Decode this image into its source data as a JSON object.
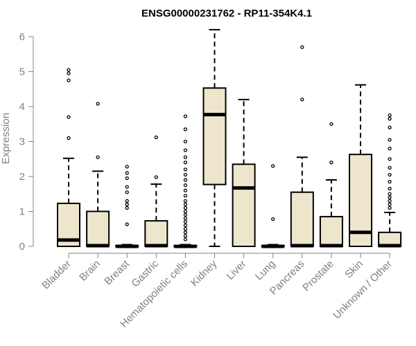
{
  "chart_data": {
    "type": "box",
    "title": "ENSG00000231762 - RP11-354K4.1",
    "ylabel": "Expression",
    "xlabel": "",
    "ylim": [
      0,
      6.2
    ],
    "yticks": [
      0,
      1,
      2,
      3,
      4,
      5,
      6
    ],
    "box_fill": "#ede6cc",
    "grid": false,
    "categories": [
      "Bladder",
      "Brain",
      "Breast",
      "Gastric",
      "Hematopoietic cells",
      "Kidney",
      "Liver",
      "Lung",
      "Pancreas",
      "Prostate",
      "Skin",
      "Unknown / Other"
    ],
    "boxes": [
      {
        "min": 0,
        "q1": 0,
        "median": 0.18,
        "q3": 1.23,
        "max": 2.52,
        "outliers": [
          3.1,
          3.7,
          4.75,
          4.95,
          5.05
        ]
      },
      {
        "min": 0,
        "q1": 0,
        "median": 0.02,
        "q3": 1.0,
        "max": 2.15,
        "outliers": [
          2.55,
          4.08
        ]
      },
      {
        "min": 0,
        "q1": 0,
        "median": 0.0,
        "q3": 0.02,
        "max": 0.05,
        "outliers": [
          0.63,
          1.1,
          1.2,
          1.3,
          1.55,
          1.7,
          1.95,
          2.1,
          2.28
        ]
      },
      {
        "min": 0,
        "q1": 0,
        "median": 0.02,
        "q3": 0.73,
        "max": 1.78,
        "outliers": [
          1.98,
          3.12
        ]
      },
      {
        "min": 0,
        "q1": 0,
        "median": 0.0,
        "q3": 0.02,
        "max": 0.05,
        "outliers": [
          0.2,
          0.3,
          0.4,
          0.5,
          0.6,
          0.7,
          0.8,
          0.9,
          1.0,
          1.1,
          1.2,
          1.3,
          1.45,
          1.6,
          1.75,
          1.9,
          2.05,
          2.2,
          2.4,
          2.55,
          2.75,
          3.0,
          3.35,
          3.72
        ]
      },
      {
        "min": 0,
        "q1": 1.77,
        "median": 3.77,
        "q3": 4.53,
        "max": 6.2,
        "outliers": []
      },
      {
        "min": 0,
        "q1": 0,
        "median": 1.67,
        "q3": 2.35,
        "max": 4.2,
        "outliers": []
      },
      {
        "min": 0,
        "q1": 0,
        "median": 0.0,
        "q3": 0.02,
        "max": 0.05,
        "outliers": [
          0.78,
          2.3
        ]
      },
      {
        "min": 0,
        "q1": 0,
        "median": 0.02,
        "q3": 1.55,
        "max": 2.55,
        "outliers": [
          4.2,
          5.7
        ]
      },
      {
        "min": 0,
        "q1": 0,
        "median": 0.02,
        "q3": 0.85,
        "max": 1.9,
        "outliers": [
          2.4,
          3.5
        ]
      },
      {
        "min": 0,
        "q1": 0,
        "median": 0.4,
        "q3": 2.63,
        "max": 4.62,
        "outliers": []
      },
      {
        "min": 0,
        "q1": 0,
        "median": 0.02,
        "q3": 0.4,
        "max": 0.97,
        "outliers": [
          1.1,
          1.2,
          1.3,
          1.4,
          1.5,
          1.65,
          1.85,
          2.05,
          2.25,
          2.5,
          2.8,
          3.05,
          3.4,
          3.65,
          3.75
        ]
      }
    ]
  }
}
